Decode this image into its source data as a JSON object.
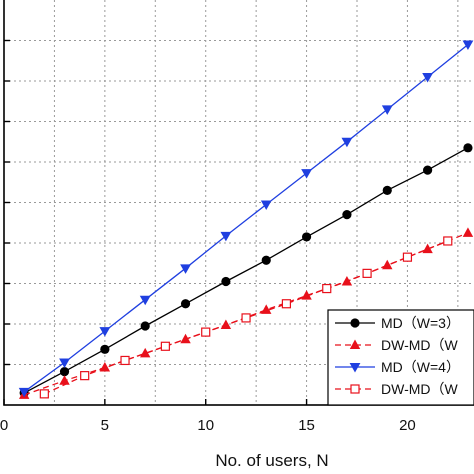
{
  "chart_data": {
    "type": "line",
    "xlabel": "No. of users, N",
    "ylabel": "",
    "xlim": [
      0,
      23.3
    ],
    "ylim": [
      0,
      20
    ],
    "xticks": [
      0,
      5,
      10,
      15,
      20
    ],
    "xtick_labels": [
      "0",
      "5",
      "10",
      "15",
      "20"
    ],
    "yticks": [
      0,
      2,
      4,
      6,
      8,
      10,
      12,
      14,
      16,
      18
    ],
    "grid": true,
    "legend_position": "bottom-right",
    "series": [
      {
        "name": "MD（W=3）",
        "color": "#000000",
        "marker": "circle",
        "line_style": "solid",
        "x": [
          1,
          3,
          5,
          7,
          9,
          11,
          13,
          15,
          17,
          19,
          21,
          23
        ],
        "y": [
          0.6,
          1.65,
          2.75,
          3.9,
          5.0,
          6.1,
          7.15,
          8.3,
          9.4,
          10.6,
          11.6,
          12.7
        ]
      },
      {
        "name": "DW-MD（W",
        "color": "#e8101b",
        "marker": "triangle-up",
        "line_style": "dashed",
        "x": [
          1,
          3,
          5,
          7,
          9,
          11,
          13,
          15,
          17,
          19,
          21,
          23
        ],
        "y": [
          0.5,
          1.2,
          1.85,
          2.55,
          3.25,
          3.95,
          4.7,
          5.4,
          6.1,
          6.9,
          7.7,
          8.5
        ]
      },
      {
        "name": "MD（W=4）",
        "color": "#1f3fe0",
        "marker": "triangle-down",
        "line_style": "solid",
        "x": [
          1,
          3,
          5,
          7,
          9,
          11,
          13,
          15,
          17,
          19,
          21,
          23
        ],
        "y": [
          0.65,
          2.1,
          3.65,
          5.2,
          6.75,
          8.35,
          9.9,
          11.45,
          13.0,
          14.6,
          16.2,
          17.8
        ]
      },
      {
        "name": "DW-MD（W",
        "color": "#e8101b",
        "marker": "square-open",
        "line_style": "dashed",
        "x": [
          2,
          4,
          6,
          8,
          10,
          12,
          14,
          16,
          18,
          20,
          22
        ],
        "y": [
          0.55,
          1.45,
          2.2,
          2.9,
          3.6,
          4.3,
          5.0,
          5.75,
          6.5,
          7.3,
          8.1
        ]
      }
    ]
  }
}
